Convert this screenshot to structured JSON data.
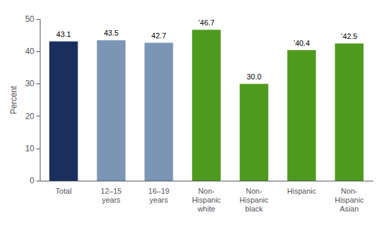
{
  "chart_data": {
    "type": "bar",
    "categories": [
      "Total",
      "12–15\nyears",
      "16–19\nyears",
      "Non-\nHispanic\nwhite",
      "Non-\nHispanic\nblack",
      "Hispanic",
      "Non-\nHispanic\nAsian"
    ],
    "values": [
      43.1,
      43.5,
      42.7,
      46.7,
      30.0,
      40.4,
      42.5
    ],
    "value_labels": [
      "43.1",
      "43.5",
      "42.7",
      "’46.7",
      "30.0",
      "’40.4",
      "’42.5"
    ],
    "colors": [
      "#1b2f5e",
      "#7b96b5",
      "#7b96b5",
      "#4e9a1e",
      "#4e9a1e",
      "#4e9a1e",
      "#4e9a1e"
    ],
    "ylabel": "Percent",
    "ylim": [
      0,
      50
    ],
    "yticks": [
      0,
      10,
      20,
      30,
      40,
      50
    ],
    "grid": false,
    "data_labels": true
  }
}
